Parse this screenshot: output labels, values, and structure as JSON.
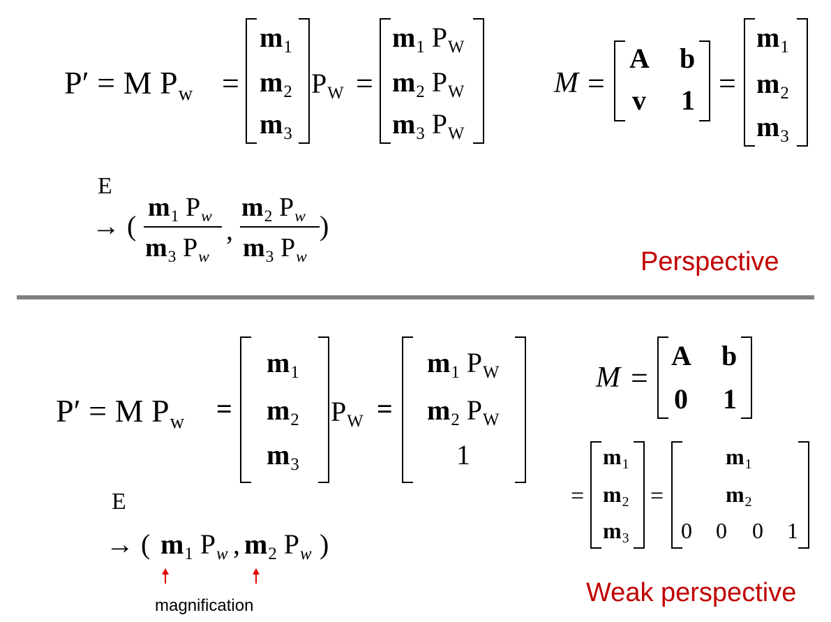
{
  "top": {
    "lhs": "P′ = M P",
    "lhs_sub": "w",
    "eq": "=",
    "rows1": [
      "m",
      "m",
      "m"
    ],
    "rows1_subs": [
      "1",
      "2",
      "3"
    ],
    "pw": "P",
    "pw_sub": "W",
    "eq2": "=",
    "rows2_subs": [
      "1",
      "2",
      "3"
    ],
    "M_label": "M",
    "eqM": "=",
    "A": "A",
    "b": "b",
    "v": "v",
    "one": "1",
    "eq3": "=",
    "E": "E",
    "arrow": "→ (",
    "comma": ",",
    "close": ")",
    "caption": "Perspective"
  },
  "bottom": {
    "lhs": "P′ = M P",
    "lhs_sub": "w",
    "eq": "=",
    "pw": "P",
    "pw_sub": "W",
    "eq2": "=",
    "row3": "1",
    "M_label": "M",
    "eqM": "=",
    "A": "A",
    "b": "b",
    "zero": "0",
    "one": "1",
    "eq4": "=",
    "eq5": "=",
    "last_row": [
      "0",
      "0",
      "0",
      "1"
    ],
    "E": "E",
    "arrow": "→ (",
    "comma": ",",
    "close": ")",
    "annotation": "magnification",
    "caption": "Weak perspective"
  }
}
